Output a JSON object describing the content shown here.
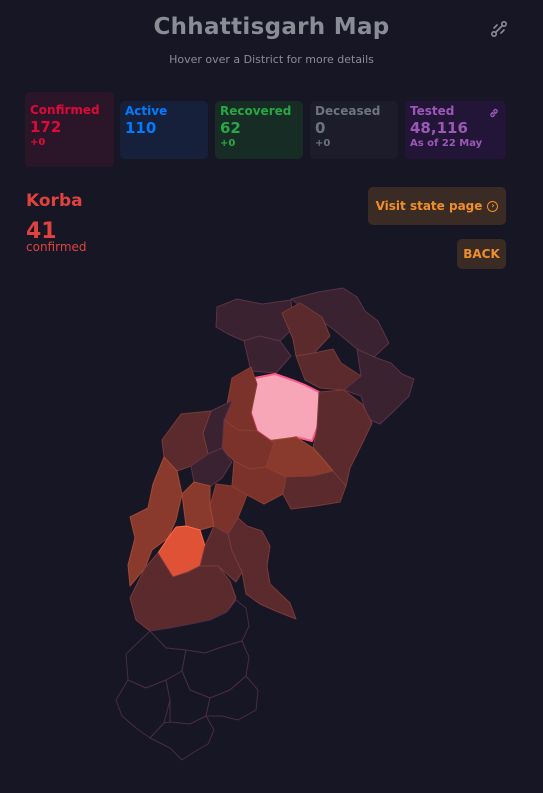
{
  "header": {
    "title": "Chhattisgarh Map",
    "subtitle": "Hover over a District for more details"
  },
  "stats": {
    "confirmed": {
      "label": "Confirmed",
      "value": "172",
      "delta": "+0"
    },
    "active": {
      "label": "Active",
      "value": "110"
    },
    "recovered": {
      "label": "Recovered",
      "value": "62",
      "delta": "+0"
    },
    "deceased": {
      "label": "Deceased",
      "value": "0",
      "delta": "+0"
    },
    "tested": {
      "label": "Tested",
      "value": "48,116",
      "note": "As of 22 May"
    }
  },
  "district": {
    "name": "Korba",
    "count": "41",
    "label": "confirmed"
  },
  "buttons": {
    "visit": "Visit state page",
    "back": "BACK"
  },
  "icons": {
    "share": "share-icon",
    "link": "link-icon",
    "visit": "arrow-circle-icon"
  },
  "colors": {
    "background": "#161625",
    "confirmed": "#ff073a",
    "active": "#007bff",
    "recovered": "#28a745",
    "deceased": "#6c757d",
    "tested": "#9b59b6",
    "accent": "#f08f28",
    "highlight_district": "#f7a6b7"
  }
}
